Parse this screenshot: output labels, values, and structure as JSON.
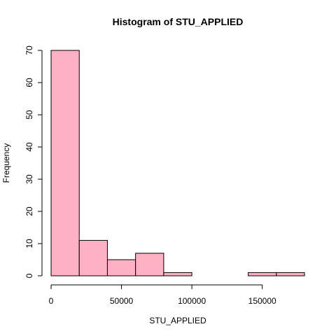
{
  "chart_data": {
    "type": "bar",
    "title": "Histogram of STU_APPLIED",
    "xlabel": "STU_APPLIED",
    "ylabel": "Frequency",
    "bins": [
      {
        "start": 0,
        "end": 20000,
        "count": 70
      },
      {
        "start": 20000,
        "end": 40000,
        "count": 11
      },
      {
        "start": 40000,
        "end": 60000,
        "count": 5
      },
      {
        "start": 60000,
        "end": 80000,
        "count": 7
      },
      {
        "start": 80000,
        "end": 100000,
        "count": 1
      },
      {
        "start": 100000,
        "end": 120000,
        "count": 0
      },
      {
        "start": 120000,
        "end": 140000,
        "count": 0
      },
      {
        "start": 140000,
        "end": 160000,
        "count": 1
      },
      {
        "start": 160000,
        "end": 180000,
        "count": 1
      }
    ],
    "xlim": [
      0,
      180000
    ],
    "ylim": [
      0,
      70
    ],
    "x_ticks": [
      0,
      50000,
      100000,
      150000
    ],
    "x_tick_labels": [
      "0",
      "50000",
      "100000",
      "150000"
    ],
    "y_ticks": [
      0,
      10,
      20,
      30,
      40,
      50,
      60,
      70
    ],
    "y_tick_labels": [
      "0",
      "10",
      "20",
      "30",
      "40",
      "50",
      "60",
      "70"
    ],
    "grid": false,
    "bar_color": "#ffb0c2",
    "edge_color": "#000000"
  }
}
